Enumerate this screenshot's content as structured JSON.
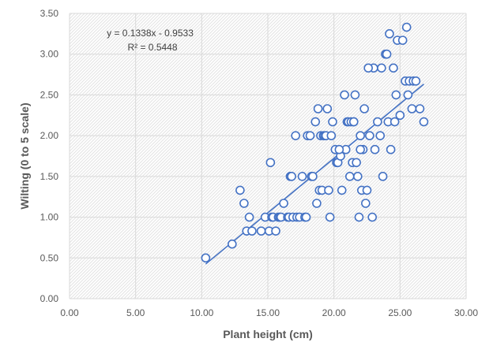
{
  "chart_data": {
    "type": "scatter",
    "title": "",
    "xlabel": "Plant height (cm)",
    "ylabel": "Wilting (0 to 5 scale)",
    "xlim": [
      0,
      30
    ],
    "ylim": [
      0,
      3.5
    ],
    "x_ticks": [
      "0.00",
      "5.00",
      "10.00",
      "15.00",
      "20.00",
      "25.00",
      "30.00"
    ],
    "y_ticks": [
      "0.00",
      "0.50",
      "1.00",
      "1.50",
      "2.00",
      "2.50",
      "3.00",
      "3.50"
    ],
    "grid": true,
    "legend": "none",
    "point_color": "#4472c4",
    "trendline": {
      "type": "linear",
      "slope": 0.1338,
      "intercept": -0.9533,
      "x_range": [
        10.3,
        26.8
      ],
      "equation": "y = 0.1338x - 0.9533",
      "r_squared": "R² = 0.5448"
    },
    "series": [
      {
        "x": [
          10.3,
          12.3,
          12.9,
          13.2,
          13.4,
          13.6,
          13.8,
          14.5,
          14.8,
          15.1,
          15.3,
          15.2,
          15.4,
          15.6,
          15.8,
          15.9,
          16.0,
          16.2,
          16.5,
          16.6,
          16.7,
          16.9,
          16.8,
          17.1,
          17.2,
          17.4,
          17.6,
          17.8,
          17.9,
          18.0,
          18.3,
          18.4,
          18.6,
          18.7,
          18.8,
          18.9,
          19.0,
          19.1,
          19.2,
          19.3,
          19.4,
          19.5,
          19.6,
          19.7,
          19.9,
          20.1,
          20.2,
          20.3,
          20.5,
          20.6,
          20.8,
          20.9,
          21.0,
          21.1,
          21.2,
          21.3,
          21.4,
          21.5,
          21.6,
          21.7,
          21.8,
          21.9,
          22.0,
          22.1,
          22.2,
          22.3,
          22.4,
          22.5,
          22.7,
          22.9,
          23.0,
          23.1,
          23.3,
          23.5,
          23.6,
          23.7,
          23.9,
          24.0,
          24.1,
          24.2,
          24.3,
          24.5,
          24.6,
          24.7,
          24.8,
          25.0,
          25.2,
          25.4,
          25.5,
          25.6,
          25.7,
          25.9,
          26.0,
          26.2,
          26.5,
          26.8,
          22.0,
          21.5,
          19.8,
          20.4,
          22.6,
          18.2
        ],
        "y": [
          0.5,
          0.67,
          1.33,
          1.17,
          0.83,
          1.0,
          0.83,
          0.83,
          1.0,
          0.83,
          1.0,
          1.67,
          1.0,
          0.83,
          1.0,
          1.0,
          1.0,
          1.17,
          1.0,
          1.0,
          1.5,
          1.0,
          1.5,
          2.0,
          1.0,
          1.0,
          1.5,
          1.0,
          1.0,
          2.0,
          1.5,
          1.5,
          2.17,
          1.17,
          2.33,
          1.33,
          2.0,
          1.33,
          2.0,
          2.0,
          2.0,
          2.33,
          1.33,
          1.0,
          2.17,
          1.83,
          1.67,
          1.67,
          1.75,
          1.33,
          2.5,
          1.83,
          2.17,
          2.17,
          1.5,
          2.17,
          1.67,
          2.17,
          2.5,
          1.67,
          1.5,
          1.0,
          2.0,
          1.33,
          1.83,
          2.33,
          1.17,
          1.33,
          2.0,
          1.0,
          2.83,
          1.83,
          2.17,
          2.0,
          2.83,
          1.5,
          3.0,
          3.0,
          2.17,
          3.25,
          1.83,
          2.83,
          2.17,
          2.5,
          3.17,
          2.25,
          3.17,
          2.67,
          3.33,
          2.5,
          2.67,
          2.33,
          2.67,
          2.67,
          2.33,
          2.17,
          1.83,
          2.17,
          2.0,
          1.83,
          2.83,
          2.0
        ]
      }
    ]
  }
}
